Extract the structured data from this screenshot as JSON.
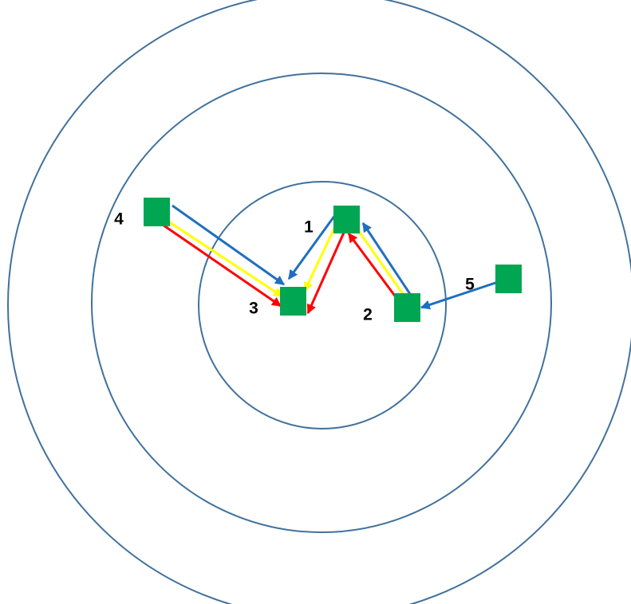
{
  "nodes": [
    {
      "label": "1"
    },
    {
      "label": "2"
    },
    {
      "label": "3"
    },
    {
      "label": "4"
    },
    {
      "label": "5"
    }
  ]
}
